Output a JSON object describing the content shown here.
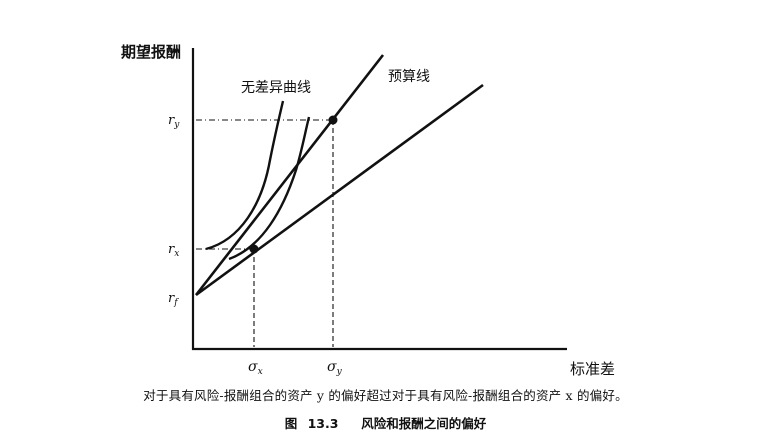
{
  "figure": {
    "y_axis_label": "期望报酬",
    "x_axis_label": "标准差",
    "y_ticks": {
      "r_y": "r",
      "r_y_sub": "y",
      "r_x": "r",
      "r_x_sub": "x",
      "r_f": "r",
      "r_f_sub": "f"
    },
    "x_ticks": {
      "sigma_x": "σ",
      "sigma_x_sub": "x",
      "sigma_y": "σ",
      "sigma_y_sub": "y"
    },
    "curve_labels": {
      "indifference": "无差异曲线",
      "budget": "预算线"
    },
    "caption": "对于具有风险-报酬组合的资产 y 的偏好超过对于具有风险-报酬组合的资产 x 的偏好。",
    "title": "图 13.3　 风险和报酬之间的偏好"
  },
  "colors": {
    "ink": "#111111",
    "background": "#ffffff"
  }
}
